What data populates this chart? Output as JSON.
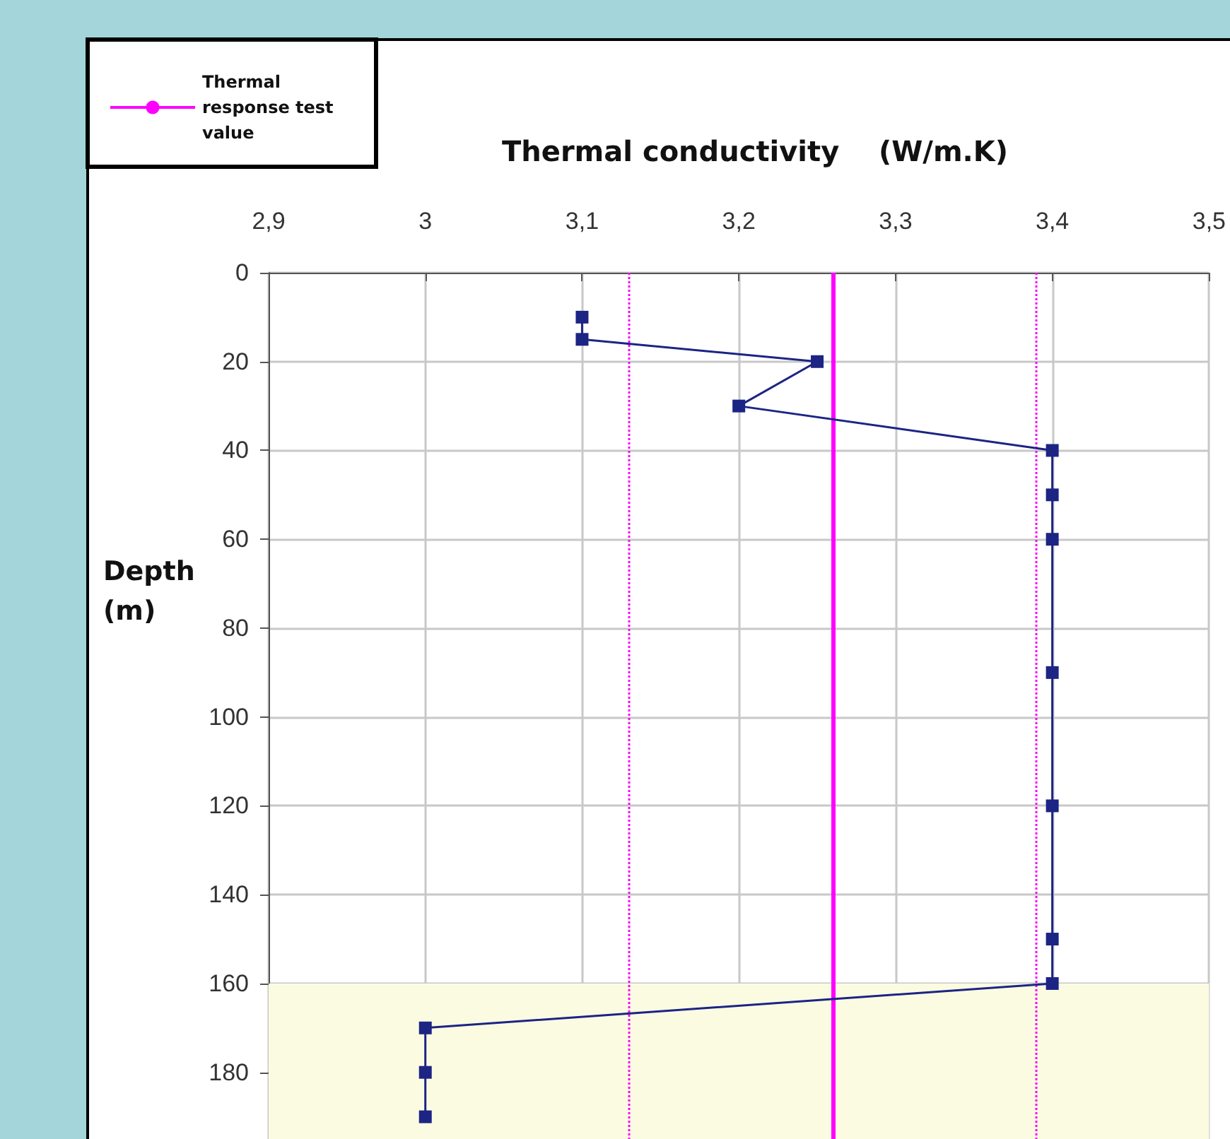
{
  "chart_data": {
    "type": "line",
    "xlabel": "Thermal conductivity    (W/m.K)",
    "ylabel": "Depth\n\n(m)",
    "x": [
      3.1,
      3.1,
      3.25,
      3.2,
      3.4,
      3.4,
      3.4,
      3.4,
      3.4,
      3.4,
      3.4,
      3.0,
      3.0,
      3.0
    ],
    "series": [
      {
        "color": "#1c2484",
        "values": [
          10,
          15,
          20,
          30,
          40,
          50,
          60,
          90,
          120,
          150,
          160,
          170,
          180,
          190
        ]
      }
    ],
    "xlim": [
      2.9,
      3.5
    ],
    "xticks": [
      {
        "value": 2.9,
        "label": "2,9"
      },
      3,
      {
        "value": 3.1,
        "label": "3,1"
      },
      {
        "value": 3.2,
        "label": "3,2"
      },
      {
        "value": 3.3,
        "label": "3,3"
      },
      {
        "value": 3.4,
        "label": "3,4"
      },
      {
        "value": 3.5,
        "label": "3,5"
      }
    ],
    "ylim": [
      195,
      0
    ],
    "yticks": [
      0,
      20,
      40,
      60,
      80,
      100,
      120,
      140,
      160,
      180
    ],
    "ref_lines": [
      {
        "axis": "x",
        "value": 3.26,
        "label": "Thermal response test value",
        "color": "#ff00ff",
        "line_style": "solid"
      },
      {
        "axis": "x",
        "value": 3.13,
        "color": "#ff00ff",
        "line_style": "dotted"
      },
      {
        "axis": "x",
        "value": 3.39,
        "color": "#ff00ff",
        "line_style": "dotted"
      }
    ],
    "bands": [
      {
        "axis": "y",
        "from": 160,
        "to": 195,
        "color": "#fbfbe1"
      }
    ],
    "grid": true,
    "marker": "square",
    "line_style": "solid",
    "legend": "top left"
  }
}
